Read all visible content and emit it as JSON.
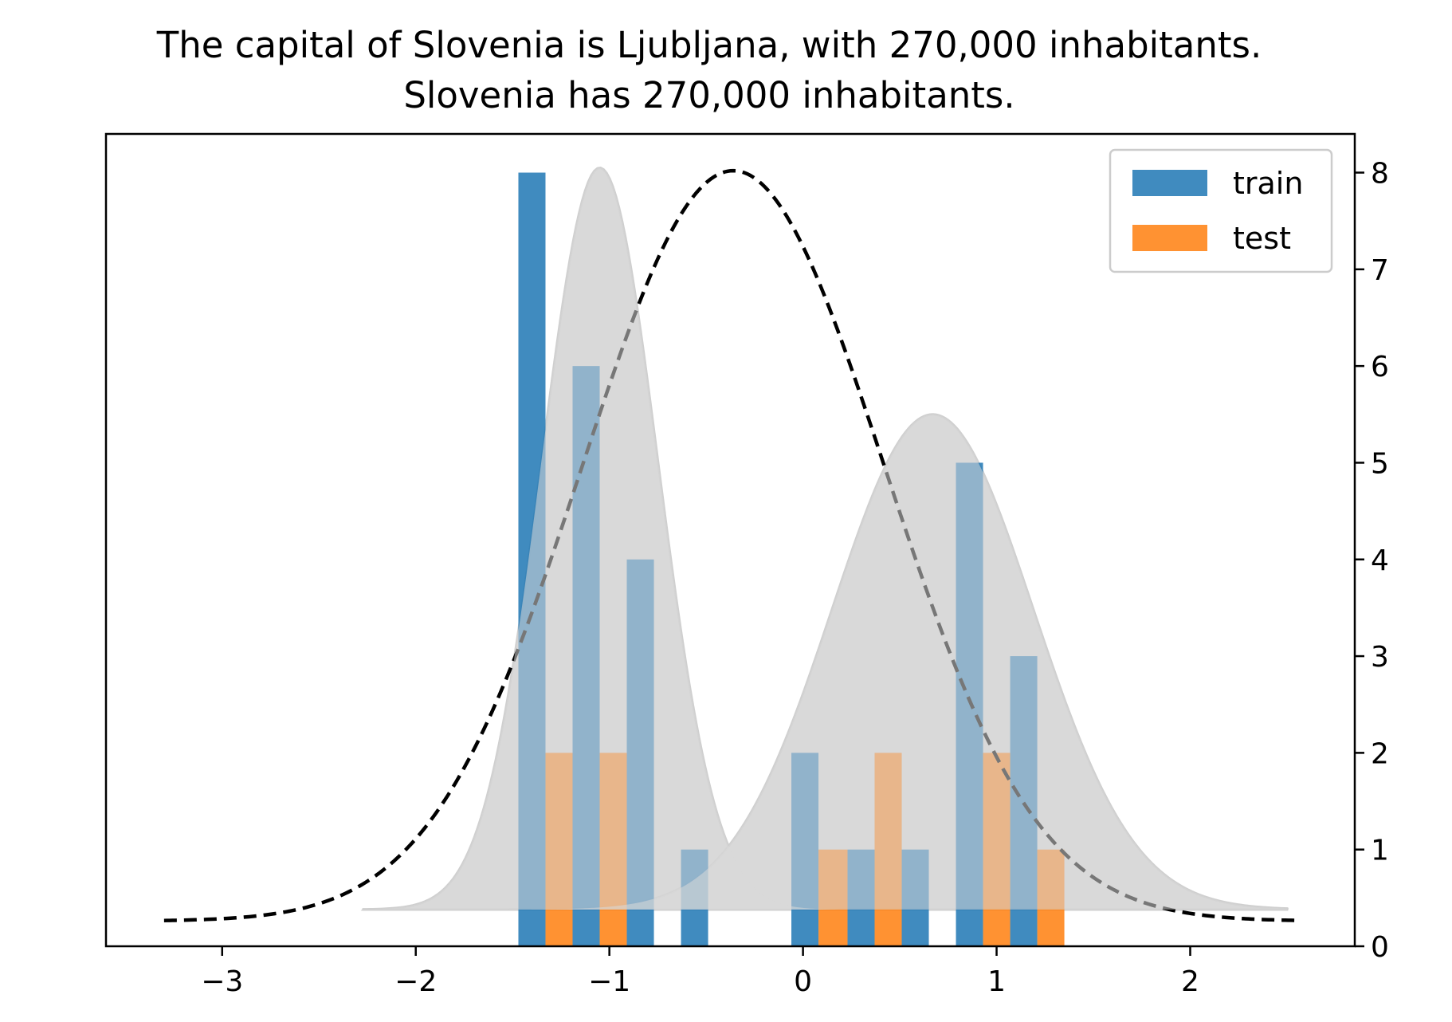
{
  "chart_data": {
    "type": "bar",
    "title": "The capital of Slovenia is Ljubljana, with 270,000 inhabitants.",
    "subtitle": "Slovenia has 270,000 inhabitants.",
    "xlim": [
      -3.6,
      2.85
    ],
    "ylim": [
      0,
      8.4
    ],
    "x_ticks": [
      -3,
      -2,
      -1,
      0,
      1,
      2
    ],
    "x_tick_labels": [
      "−3",
      "−2",
      "−1",
      "0",
      "1",
      "2"
    ],
    "y_ticks": [
      0,
      1,
      2,
      3,
      4,
      5,
      6,
      7,
      8
    ],
    "y_tick_labels": [
      "0",
      "1",
      "2",
      "3",
      "4",
      "5",
      "6",
      "7",
      "8"
    ],
    "y_axis_side": "right",
    "grid": false,
    "legend": {
      "placement": "top-right",
      "entries": [
        "train",
        "test"
      ]
    },
    "series": [
      {
        "name": "train",
        "color": "#1f77b4",
        "bars": [
          {
            "x_start": -1.47,
            "x_end": -1.33,
            "value": 8
          },
          {
            "x_start": -1.19,
            "x_end": -1.05,
            "value": 6
          },
          {
            "x_start": -0.91,
            "x_end": -0.77,
            "value": 4
          },
          {
            "x_start": -0.63,
            "x_end": -0.49,
            "value": 1
          },
          {
            "x_start": -0.06,
            "x_end": 0.08,
            "value": 2
          },
          {
            "x_start": 0.23,
            "x_end": 0.37,
            "value": 1
          },
          {
            "x_start": 0.51,
            "x_end": 0.65,
            "value": 1
          },
          {
            "x_start": 0.79,
            "x_end": 0.93,
            "value": 5
          },
          {
            "x_start": 1.07,
            "x_end": 1.21,
            "value": 3
          }
        ]
      },
      {
        "name": "test",
        "color": "#ff7f0e",
        "bars": [
          {
            "x_start": -1.33,
            "x_end": -1.19,
            "value": 2
          },
          {
            "x_start": -1.05,
            "x_end": -0.91,
            "value": 2
          },
          {
            "x_start": 0.08,
            "x_end": 0.23,
            "value": 1
          },
          {
            "x_start": 0.37,
            "x_end": 0.51,
            "value": 2
          },
          {
            "x_start": 0.93,
            "x_end": 1.07,
            "value": 2
          },
          {
            "x_start": 1.21,
            "x_end": 1.35,
            "value": 1
          }
        ]
      }
    ],
    "gray_curves": [
      {
        "mu": -1.05,
        "sigma": 0.3,
        "base": 0.38,
        "peak": 8.05,
        "x_start": -2.27,
        "x_end": 2.5
      },
      {
        "mu": 0.67,
        "sigma": 0.52,
        "base": 0.38,
        "peak": 5.5,
        "x_start": -2.27,
        "x_end": 2.5
      }
    ],
    "gray_curve_color": "#d9d9d9",
    "dashed_curve": {
      "mu": -0.36,
      "sigma": 0.78,
      "base": 0.26,
      "peak": 8.02,
      "x_start": -3.3,
      "x_end": 2.55,
      "color": "#000000"
    }
  }
}
